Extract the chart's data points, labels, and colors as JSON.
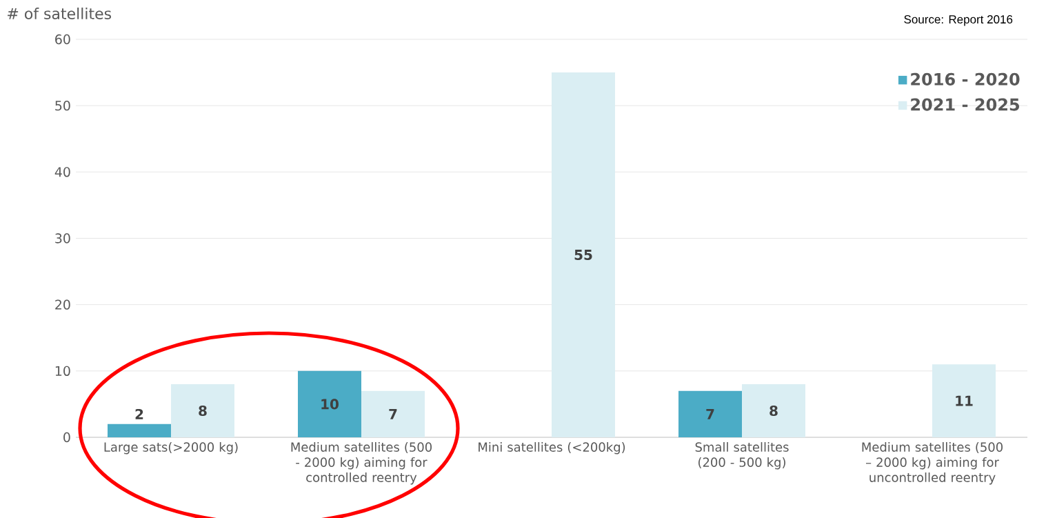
{
  "chart_data": {
    "type": "bar",
    "ylabel": "# of satellites",
    "annotations": [
      "Source: Report 2016"
    ],
    "categories": [
      "Large sats(>2000 kg)",
      "Medium satellites (500 - 2000 kg) aiming for controlled reentry",
      "Mini satellites (<200kg)",
      "Small satellites (200 - 500 kg)",
      "Medium satellites (500 – 2000 kg) aiming for uncontrolled reentry"
    ],
    "series": [
      {
        "name": "2016 - 2020",
        "color": "#4bacc6",
        "values": [
          2,
          10,
          null,
          7,
          null
        ]
      },
      {
        "name": "2021 - 2025",
        "color": "#daeef3",
        "values": [
          8,
          7,
          55,
          8,
          11
        ]
      }
    ],
    "ylim": [
      0,
      60
    ],
    "yticks": [
      0,
      10,
      20,
      30,
      40,
      50,
      60
    ],
    "grid": "y",
    "legend": "top right",
    "data_labels": true
  }
}
